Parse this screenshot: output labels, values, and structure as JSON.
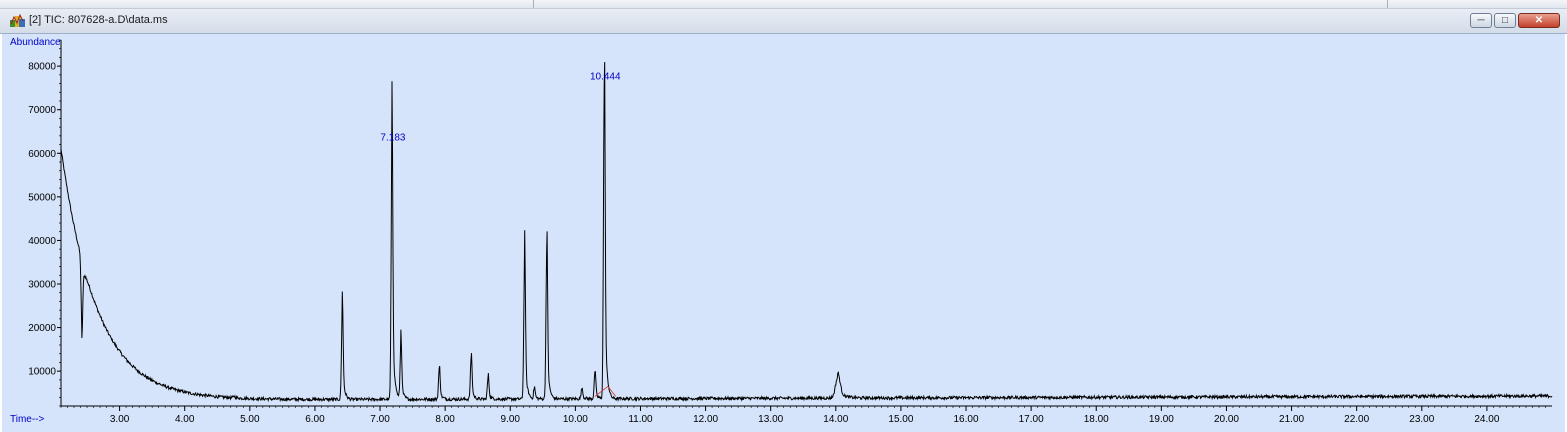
{
  "window": {
    "title": "[2] TIC: 807628-a.D\\data.ms",
    "icon": "chromatogram-app-icon",
    "buttons": {
      "minimize": "minimize-icon",
      "restore": "restore-icon",
      "close": "close-icon"
    }
  },
  "chart_data": {
    "type": "line",
    "ylabel": "Abundance",
    "xlabel": "Time-->",
    "xlim": [
      2.1,
      25.0
    ],
    "ylim": [
      2000,
      86000
    ],
    "x_ticks": [
      3.0,
      4.0,
      5.0,
      6.0,
      7.0,
      8.0,
      9.0,
      10.0,
      11.0,
      12.0,
      13.0,
      14.0,
      15.0,
      16.0,
      17.0,
      18.0,
      19.0,
      20.0,
      21.0,
      22.0,
      23.0,
      24.0
    ],
    "x_tick_labels": [
      "3.00",
      "4.00",
      "5.00",
      "6.00",
      "7.00",
      "8.00",
      "9.00",
      "10.00",
      "11.00",
      "12.00",
      "13.00",
      "14.00",
      "15.00",
      "16.00",
      "17.00",
      "18.00",
      "19.00",
      "20.00",
      "21.00",
      "22.00",
      "23.00",
      "24.00"
    ],
    "y_ticks": [
      10000,
      20000,
      30000,
      40000,
      50000,
      60000,
      70000,
      80000
    ],
    "y_tick_labels": [
      "10000",
      "20000",
      "30000",
      "40000",
      "50000",
      "60000",
      "70000",
      "80000"
    ],
    "baseline": {
      "start": 61000,
      "decay_min": 0.55,
      "floor": 3300,
      "end": 4300
    },
    "peaks": [
      {
        "rt": 2.42,
        "height": 21000
      },
      {
        "rt": 4.76,
        "height": 4200
      },
      {
        "rt": 6.42,
        "height": 23500
      },
      {
        "rt": 7.183,
        "height": 62000,
        "label": "7.183"
      },
      {
        "rt": 7.32,
        "height": 16500
      },
      {
        "rt": 7.91,
        "height": 10500
      },
      {
        "rt": 8.4,
        "height": 13000
      },
      {
        "rt": 8.66,
        "height": 8500
      },
      {
        "rt": 9.22,
        "height": 35000
      },
      {
        "rt": 9.37,
        "height": 6000
      },
      {
        "rt": 9.56,
        "height": 37500
      },
      {
        "rt": 10.1,
        "height": 6000
      },
      {
        "rt": 10.3,
        "height": 9500
      },
      {
        "rt": 10.444,
        "height": 76000,
        "label": "10.444"
      },
      {
        "rt": 14.03,
        "height": 8500
      }
    ],
    "line_color": "#000000",
    "label_color": "#0000cc",
    "background_color": "#d5e4fa"
  }
}
